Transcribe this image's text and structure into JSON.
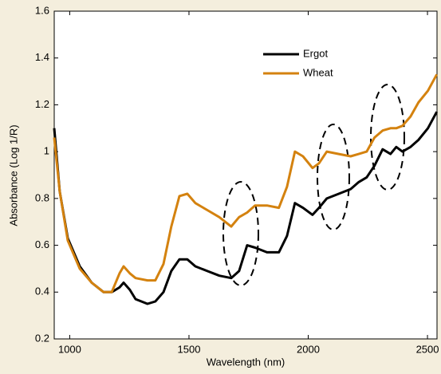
{
  "chart_data": {
    "type": "line",
    "xlabel": "Wavelength (nm)",
    "ylabel": "Absorbance (Log 1/R)",
    "x": [
      935,
      958,
      992,
      1042,
      1092,
      1142,
      1176,
      1209,
      1226,
      1252,
      1276,
      1326,
      1359,
      1393,
      1426,
      1460,
      1493,
      1527,
      1577,
      1627,
      1677,
      1710,
      1744,
      1777,
      1827,
      1877,
      1911,
      1944,
      1978,
      2018,
      2045,
      2078,
      2128,
      2178,
      2212,
      2245,
      2278,
      2312,
      2345,
      2369,
      2395,
      2429,
      2462,
      2502,
      2539
    ],
    "series": [
      {
        "name": "Ergot",
        "color": "#000000",
        "values": [
          1.1,
          0.83,
          0.63,
          0.51,
          0.44,
          0.4,
          0.4,
          0.42,
          0.44,
          0.41,
          0.37,
          0.35,
          0.36,
          0.4,
          0.49,
          0.54,
          0.54,
          0.51,
          0.49,
          0.47,
          0.46,
          0.49,
          0.6,
          0.59,
          0.57,
          0.57,
          0.64,
          0.78,
          0.76,
          0.73,
          0.76,
          0.8,
          0.82,
          0.84,
          0.87,
          0.89,
          0.94,
          1.01,
          0.99,
          1.02,
          1.0,
          1.02,
          1.05,
          1.1,
          1.17
        ]
      },
      {
        "name": "Wheat",
        "color": "#d4820f",
        "values": [
          1.06,
          0.83,
          0.62,
          0.5,
          0.44,
          0.4,
          0.4,
          0.48,
          0.51,
          0.48,
          0.46,
          0.45,
          0.45,
          0.52,
          0.68,
          0.81,
          0.82,
          0.78,
          0.75,
          0.72,
          0.68,
          0.72,
          0.74,
          0.77,
          0.77,
          0.76,
          0.85,
          1.0,
          0.98,
          0.93,
          0.95,
          1.0,
          0.99,
          0.98,
          0.99,
          1.0,
          1.06,
          1.09,
          1.1,
          1.1,
          1.11,
          1.15,
          1.21,
          1.26,
          1.33
        ]
      }
    ],
    "xlim": [
      935,
      2540
    ],
    "xticks": [
      1000,
      1500,
      2000,
      2500
    ],
    "ylim": [
      0.2,
      1.6
    ],
    "yticks": [
      0.2,
      0.4,
      0.6,
      0.8,
      1,
      1.2,
      1.4,
      1.6
    ],
    "grid": false,
    "legend": "upper right"
  }
}
